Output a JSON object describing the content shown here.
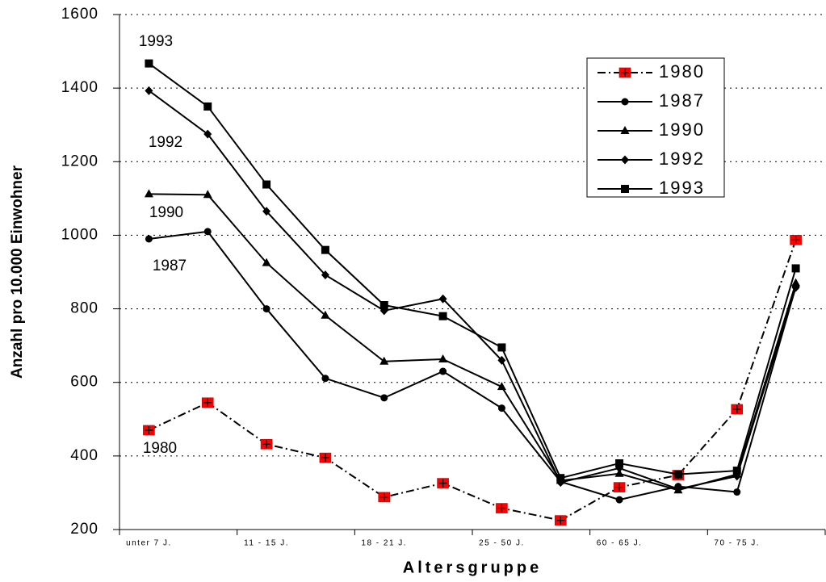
{
  "chart_data": {
    "type": "line",
    "y_label": "Anzahl pro 10.000 Einwohner",
    "x_label": "Altersgruppe",
    "categories": [
      "unter 7 J.",
      null,
      "11 - 15 J.",
      null,
      "18 - 21 J.",
      null,
      "25 - 50 J.",
      null,
      "60 - 65 J.",
      null,
      "70 - 75 J.",
      null
    ],
    "ylim": [
      200,
      1600
    ],
    "yticks": [
      200,
      400,
      600,
      800,
      1000,
      1200,
      1400,
      1600
    ],
    "grid": true,
    "legend": "upper right",
    "series": [
      {
        "name": "1980",
        "color": "#000000",
        "marker": "square-cross",
        "dash": "dash-dot",
        "values": [
          470,
          545,
          432,
          395,
          288,
          326,
          258,
          225,
          315,
          348,
          527,
          987
        ]
      },
      {
        "name": "1987",
        "color": "#000000",
        "marker": "circle",
        "values": [
          990,
          1010,
          800,
          611,
          558,
          630,
          530,
          330,
          281,
          317,
          302,
          860
        ]
      },
      {
        "name": "1990",
        "color": "#000000",
        "marker": "triangle",
        "values": [
          1112,
          1110,
          925,
          782,
          657,
          663,
          588,
          333,
          352,
          307,
          350,
          870
        ]
      },
      {
        "name": "1992",
        "color": "#000000",
        "marker": "diamond",
        "values": [
          1393,
          1275,
          1065,
          892,
          795,
          827,
          660,
          328,
          367,
          310,
          345,
          858
        ]
      },
      {
        "name": "1993",
        "color": "#000000",
        "marker": "square",
        "values": [
          1467,
          1350,
          1138,
          960,
          810,
          780,
          695,
          340,
          380,
          350,
          360,
          910
        ]
      }
    ],
    "annotations": [
      "1993",
      "1992",
      "1990",
      "1987",
      "1980"
    ]
  }
}
